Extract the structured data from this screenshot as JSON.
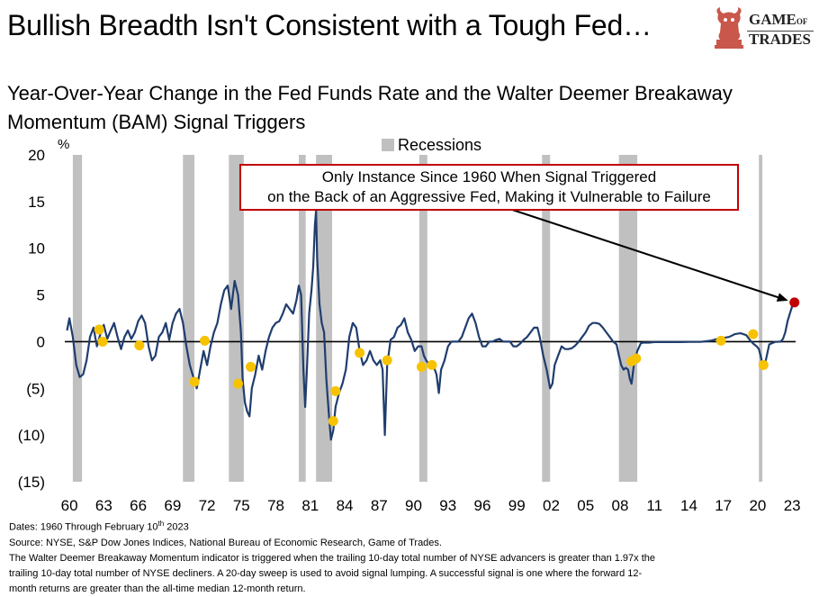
{
  "headline": "Bullish Breadth Isn't Consistent with a Tough Fed…",
  "subtitle_line1": "Year-Over-Year Change in the Fed Funds Rate and the Walter Deemer  Breakaway",
  "subtitle_line2": "Momentum (BAM) Signal Triggers",
  "logo": {
    "line1": "GAME",
    "of": "OF",
    "line2": "TRADES",
    "icon": "bull-knight-icon"
  },
  "legend_label": "Recessions",
  "callout_line1": "Only Instance Since 1960 When Signal Triggered",
  "callout_line2": "on the Back of an Aggressive Fed, Making it Vulnerable to Failure",
  "footer": {
    "dates_prefix": "Dates: 1960 Through  February 10",
    "dates_sup": "th",
    "dates_suffix": " 2023",
    "source": "Source: NYSE, S&P Dow Jones Indices, National Bureau of Economic Research, Game of Trades.",
    "note_line1": "The Walter Deemer Breakaway Momentum  indicator is triggered when the trailing  10-day total number of NYSE advancers is greater than 1.97x  the",
    "note_line2": "trailing  10-day total number of NYSE decliners. A 20-day sweep is used to avoid signal lumping.  A successful signal is one where the forward  12-",
    "note_line3": "month returns are greater than the all-time median 12-month  return."
  },
  "colors": {
    "line": "#1f3d6e",
    "signal": "#f7c200",
    "latest_signal": "#c00000",
    "recession": "#c0c0c0",
    "callout_border": "#c00000"
  },
  "chart_data": {
    "type": "line",
    "y_unit": "%",
    "ylim": [
      -15,
      20
    ],
    "y_ticks": [
      20,
      15,
      10,
      5,
      0,
      -5,
      -10,
      -15
    ],
    "y_tick_labels": [
      "20",
      "15",
      "10",
      "5",
      "0",
      "(5)",
      "(10)",
      "(15)"
    ],
    "xlim": [
      1959.6,
      2023.3
    ],
    "x_ticks": [
      1960,
      1963,
      1966,
      1969,
      1972,
      1975,
      1978,
      1981,
      1984,
      1987,
      1990,
      1993,
      1996,
      1999,
      2002,
      2005,
      2008,
      2011,
      2014,
      2017,
      2020,
      2023
    ],
    "x_tick_labels": [
      "60",
      "63",
      "66",
      "69",
      "72",
      "75",
      "78",
      "81",
      "84",
      "87",
      "90",
      "93",
      "96",
      "99",
      "02",
      "05",
      "08",
      "11",
      "14",
      "17",
      "20",
      "23"
    ],
    "recessions": [
      [
        1960.3,
        1961.1
      ],
      [
        1969.9,
        1970.9
      ],
      [
        1973.9,
        1975.2
      ],
      [
        1980.0,
        1980.6
      ],
      [
        1981.5,
        1982.9
      ],
      [
        1990.5,
        1991.2
      ],
      [
        2001.2,
        2001.9
      ],
      [
        2007.9,
        2009.5
      ],
      [
        2020.1,
        2020.4
      ]
    ],
    "series": [
      {
        "values": [
          [
            1959.8,
            1.2
          ],
          [
            1960.0,
            2.5
          ],
          [
            1960.3,
            0.5
          ],
          [
            1960.6,
            -2.5
          ],
          [
            1960.9,
            -3.8
          ],
          [
            1961.2,
            -3.5
          ],
          [
            1961.5,
            -2.0
          ],
          [
            1961.8,
            0.5
          ],
          [
            1962.1,
            1.5
          ],
          [
            1962.4,
            -0.5
          ],
          [
            1962.7,
            0.8
          ],
          [
            1963.0,
            1.8
          ],
          [
            1963.3,
            0.3
          ],
          [
            1963.6,
            1.2
          ],
          [
            1963.9,
            2.0
          ],
          [
            1964.2,
            0.5
          ],
          [
            1964.5,
            -0.8
          ],
          [
            1964.8,
            0.5
          ],
          [
            1965.1,
            1.2
          ],
          [
            1965.4,
            0.3
          ],
          [
            1965.7,
            1.0
          ],
          [
            1966.0,
            2.2
          ],
          [
            1966.3,
            2.8
          ],
          [
            1966.6,
            2.0
          ],
          [
            1966.9,
            -0.5
          ],
          [
            1967.2,
            -2.0
          ],
          [
            1967.5,
            -1.5
          ],
          [
            1967.8,
            0.5
          ],
          [
            1968.1,
            1.0
          ],
          [
            1968.4,
            2.0
          ],
          [
            1968.7,
            0.2
          ],
          [
            1969.0,
            2.0
          ],
          [
            1969.3,
            3.0
          ],
          [
            1969.6,
            3.5
          ],
          [
            1969.9,
            2.0
          ],
          [
            1970.2,
            -0.5
          ],
          [
            1970.5,
            -2.5
          ],
          [
            1970.8,
            -3.8
          ],
          [
            1971.1,
            -5.0
          ],
          [
            1971.4,
            -3.0
          ],
          [
            1971.7,
            -1.0
          ],
          [
            1972.0,
            -2.5
          ],
          [
            1972.3,
            -0.5
          ],
          [
            1972.6,
            1.0
          ],
          [
            1972.9,
            2.0
          ],
          [
            1973.2,
            4.0
          ],
          [
            1973.5,
            5.5
          ],
          [
            1973.8,
            6.0
          ],
          [
            1974.1,
            3.5
          ],
          [
            1974.4,
            6.5
          ],
          [
            1974.7,
            5.0
          ],
          [
            1974.95,
            1.0
          ],
          [
            1975.1,
            -4.0
          ],
          [
            1975.3,
            -6.5
          ],
          [
            1975.5,
            -7.5
          ],
          [
            1975.7,
            -8.0
          ],
          [
            1975.9,
            -5.0
          ],
          [
            1976.2,
            -3.5
          ],
          [
            1976.5,
            -1.5
          ],
          [
            1976.8,
            -3.0
          ],
          [
            1977.1,
            -1.0
          ],
          [
            1977.4,
            0.5
          ],
          [
            1977.7,
            1.5
          ],
          [
            1978.0,
            2.0
          ],
          [
            1978.3,
            2.2
          ],
          [
            1978.6,
            3.0
          ],
          [
            1978.9,
            4.0
          ],
          [
            1979.2,
            3.5
          ],
          [
            1979.5,
            3.0
          ],
          [
            1979.8,
            4.5
          ],
          [
            1980.0,
            6.0
          ],
          [
            1980.2,
            5.0
          ],
          [
            1980.4,
            -3.0
          ],
          [
            1980.55,
            -7.0
          ],
          [
            1980.7,
            -3.0
          ],
          [
            1980.9,
            3.0
          ],
          [
            1981.1,
            5.5
          ],
          [
            1981.25,
            8.0
          ],
          [
            1981.4,
            12.5
          ],
          [
            1981.5,
            14.0
          ],
          [
            1981.6,
            9.0
          ],
          [
            1981.8,
            4.0
          ],
          [
            1982.0,
            2.0
          ],
          [
            1982.2,
            1.0
          ],
          [
            1982.4,
            -4.0
          ],
          [
            1982.6,
            -7.5
          ],
          [
            1982.8,
            -10.5
          ],
          [
            1983.0,
            -9.5
          ],
          [
            1983.2,
            -7.0
          ],
          [
            1983.5,
            -5.5
          ],
          [
            1983.8,
            -4.5
          ],
          [
            1984.1,
            -3.0
          ],
          [
            1984.4,
            0.5
          ],
          [
            1984.7,
            2.0
          ],
          [
            1985.0,
            1.5
          ],
          [
            1985.3,
            -1.0
          ],
          [
            1985.6,
            -2.5
          ],
          [
            1985.9,
            -2.0
          ],
          [
            1986.2,
            -1.0
          ],
          [
            1986.5,
            -2.0
          ],
          [
            1986.8,
            -2.5
          ],
          [
            1987.1,
            -2.0
          ],
          [
            1987.3,
            -3.0
          ],
          [
            1987.5,
            -10.0
          ],
          [
            1987.7,
            -2.5
          ],
          [
            1988.0,
            0.2
          ],
          [
            1988.3,
            0.5
          ],
          [
            1988.6,
            1.5
          ],
          [
            1988.9,
            1.8
          ],
          [
            1989.2,
            2.5
          ],
          [
            1989.5,
            1.0
          ],
          [
            1989.8,
            0.2
          ],
          [
            1990.1,
            -1.0
          ],
          [
            1990.4,
            -0.5
          ],
          [
            1990.7,
            -0.5
          ],
          [
            1990.9,
            -1.5
          ],
          [
            1991.1,
            -2.0
          ],
          [
            1991.4,
            -2.5
          ],
          [
            1991.7,
            -2.5
          ],
          [
            1992.0,
            -3.5
          ],
          [
            1992.2,
            -5.5
          ],
          [
            1992.4,
            -3.0
          ],
          [
            1992.7,
            -2.0
          ],
          [
            1993.0,
            -0.5
          ],
          [
            1993.3,
            0.0
          ],
          [
            1993.6,
            0.0
          ],
          [
            1993.9,
            0.0
          ],
          [
            1994.2,
            0.5
          ],
          [
            1994.5,
            1.5
          ],
          [
            1994.8,
            2.5
          ],
          [
            1995.1,
            3.0
          ],
          [
            1995.4,
            2.0
          ],
          [
            1995.7,
            0.5
          ],
          [
            1996.0,
            -0.5
          ],
          [
            1996.3,
            -0.5
          ],
          [
            1996.6,
            0.0
          ],
          [
            1996.9,
            0.0
          ],
          [
            1997.2,
            0.2
          ],
          [
            1997.5,
            0.3
          ],
          [
            1997.8,
            0.0
          ],
          [
            1998.1,
            0.0
          ],
          [
            1998.4,
            0.0
          ],
          [
            1998.7,
            -0.5
          ],
          [
            1999.0,
            -0.5
          ],
          [
            1999.3,
            -0.2
          ],
          [
            1999.6,
            0.2
          ],
          [
            1999.9,
            0.5
          ],
          [
            2000.2,
            1.0
          ],
          [
            2000.5,
            1.5
          ],
          [
            2000.8,
            1.5
          ],
          [
            2001.0,
            0.5
          ],
          [
            2001.3,
            -1.5
          ],
          [
            2001.6,
            -3.0
          ],
          [
            2001.9,
            -5.0
          ],
          [
            2002.1,
            -4.5
          ],
          [
            2002.3,
            -2.5
          ],
          [
            2002.6,
            -1.5
          ],
          [
            2002.9,
            -0.5
          ],
          [
            2003.2,
            -0.8
          ],
          [
            2003.5,
            -0.8
          ],
          [
            2003.8,
            -0.7
          ],
          [
            2004.1,
            -0.4
          ],
          [
            2004.4,
            0.0
          ],
          [
            2004.7,
            0.5
          ],
          [
            2005.0,
            1.0
          ],
          [
            2005.3,
            1.7
          ],
          [
            2005.6,
            2.0
          ],
          [
            2005.9,
            2.0
          ],
          [
            2006.2,
            1.9
          ],
          [
            2006.5,
            1.5
          ],
          [
            2006.8,
            1.0
          ],
          [
            2007.1,
            0.5
          ],
          [
            2007.4,
            0.0
          ],
          [
            2007.7,
            -0.3
          ],
          [
            2007.9,
            -1.5
          ],
          [
            2008.1,
            -2.5
          ],
          [
            2008.3,
            -3.0
          ],
          [
            2008.5,
            -2.8
          ],
          [
            2008.7,
            -3.0
          ],
          [
            2008.85,
            -4.0
          ],
          [
            2009.0,
            -4.5
          ],
          [
            2009.2,
            -2.5
          ],
          [
            2009.5,
            -1.0
          ],
          [
            2009.8,
            -0.2
          ],
          [
            2010.0,
            -0.1
          ],
          [
            2010.5,
            -0.1
          ],
          [
            2011.0,
            -0.05
          ],
          [
            2012.0,
            -0.05
          ],
          [
            2013.0,
            -0.05
          ],
          [
            2014.0,
            -0.03
          ],
          [
            2015.0,
            -0.03
          ],
          [
            2015.9,
            0.1
          ],
          [
            2016.5,
            0.3
          ],
          [
            2017.0,
            0.4
          ],
          [
            2017.5,
            0.5
          ],
          [
            2018.0,
            0.8
          ],
          [
            2018.5,
            0.9
          ],
          [
            2019.0,
            0.7
          ],
          [
            2019.3,
            0.2
          ],
          [
            2019.6,
            -0.2
          ],
          [
            2019.9,
            -0.5
          ],
          [
            2020.1,
            -0.8
          ],
          [
            2020.25,
            -1.5
          ],
          [
            2020.4,
            -2.3
          ],
          [
            2020.7,
            -2.0
          ],
          [
            2021.0,
            -0.3
          ],
          [
            2021.5,
            -0.03
          ],
          [
            2022.0,
            0.0
          ],
          [
            2022.2,
            0.3
          ],
          [
            2022.4,
            1.0
          ],
          [
            2022.6,
            2.2
          ],
          [
            2022.8,
            3.0
          ],
          [
            2023.0,
            3.8
          ],
          [
            2023.1,
            4.0
          ]
        ]
      }
    ],
    "signals": [
      [
        1962.6,
        1.3
      ],
      [
        1962.9,
        0.0
      ],
      [
        1966.1,
        -0.4
      ],
      [
        1970.9,
        -4.3
      ],
      [
        1971.8,
        0.1
      ],
      [
        1974.7,
        -4.5
      ],
      [
        1975.8,
        -2.7
      ],
      [
        1983.0,
        -8.5
      ],
      [
        1983.2,
        -5.3
      ],
      [
        1985.3,
        -1.2
      ],
      [
        1987.7,
        -2.0
      ],
      [
        1990.7,
        -2.7
      ],
      [
        1991.6,
        -2.5
      ],
      [
        2009.0,
        -2.1
      ],
      [
        2009.4,
        -1.8
      ],
      [
        2016.8,
        0.1
      ],
      [
        2019.6,
        0.8
      ],
      [
        2020.5,
        -2.5
      ]
    ],
    "latest_signal": [
      2023.2,
      4.2
    ]
  }
}
